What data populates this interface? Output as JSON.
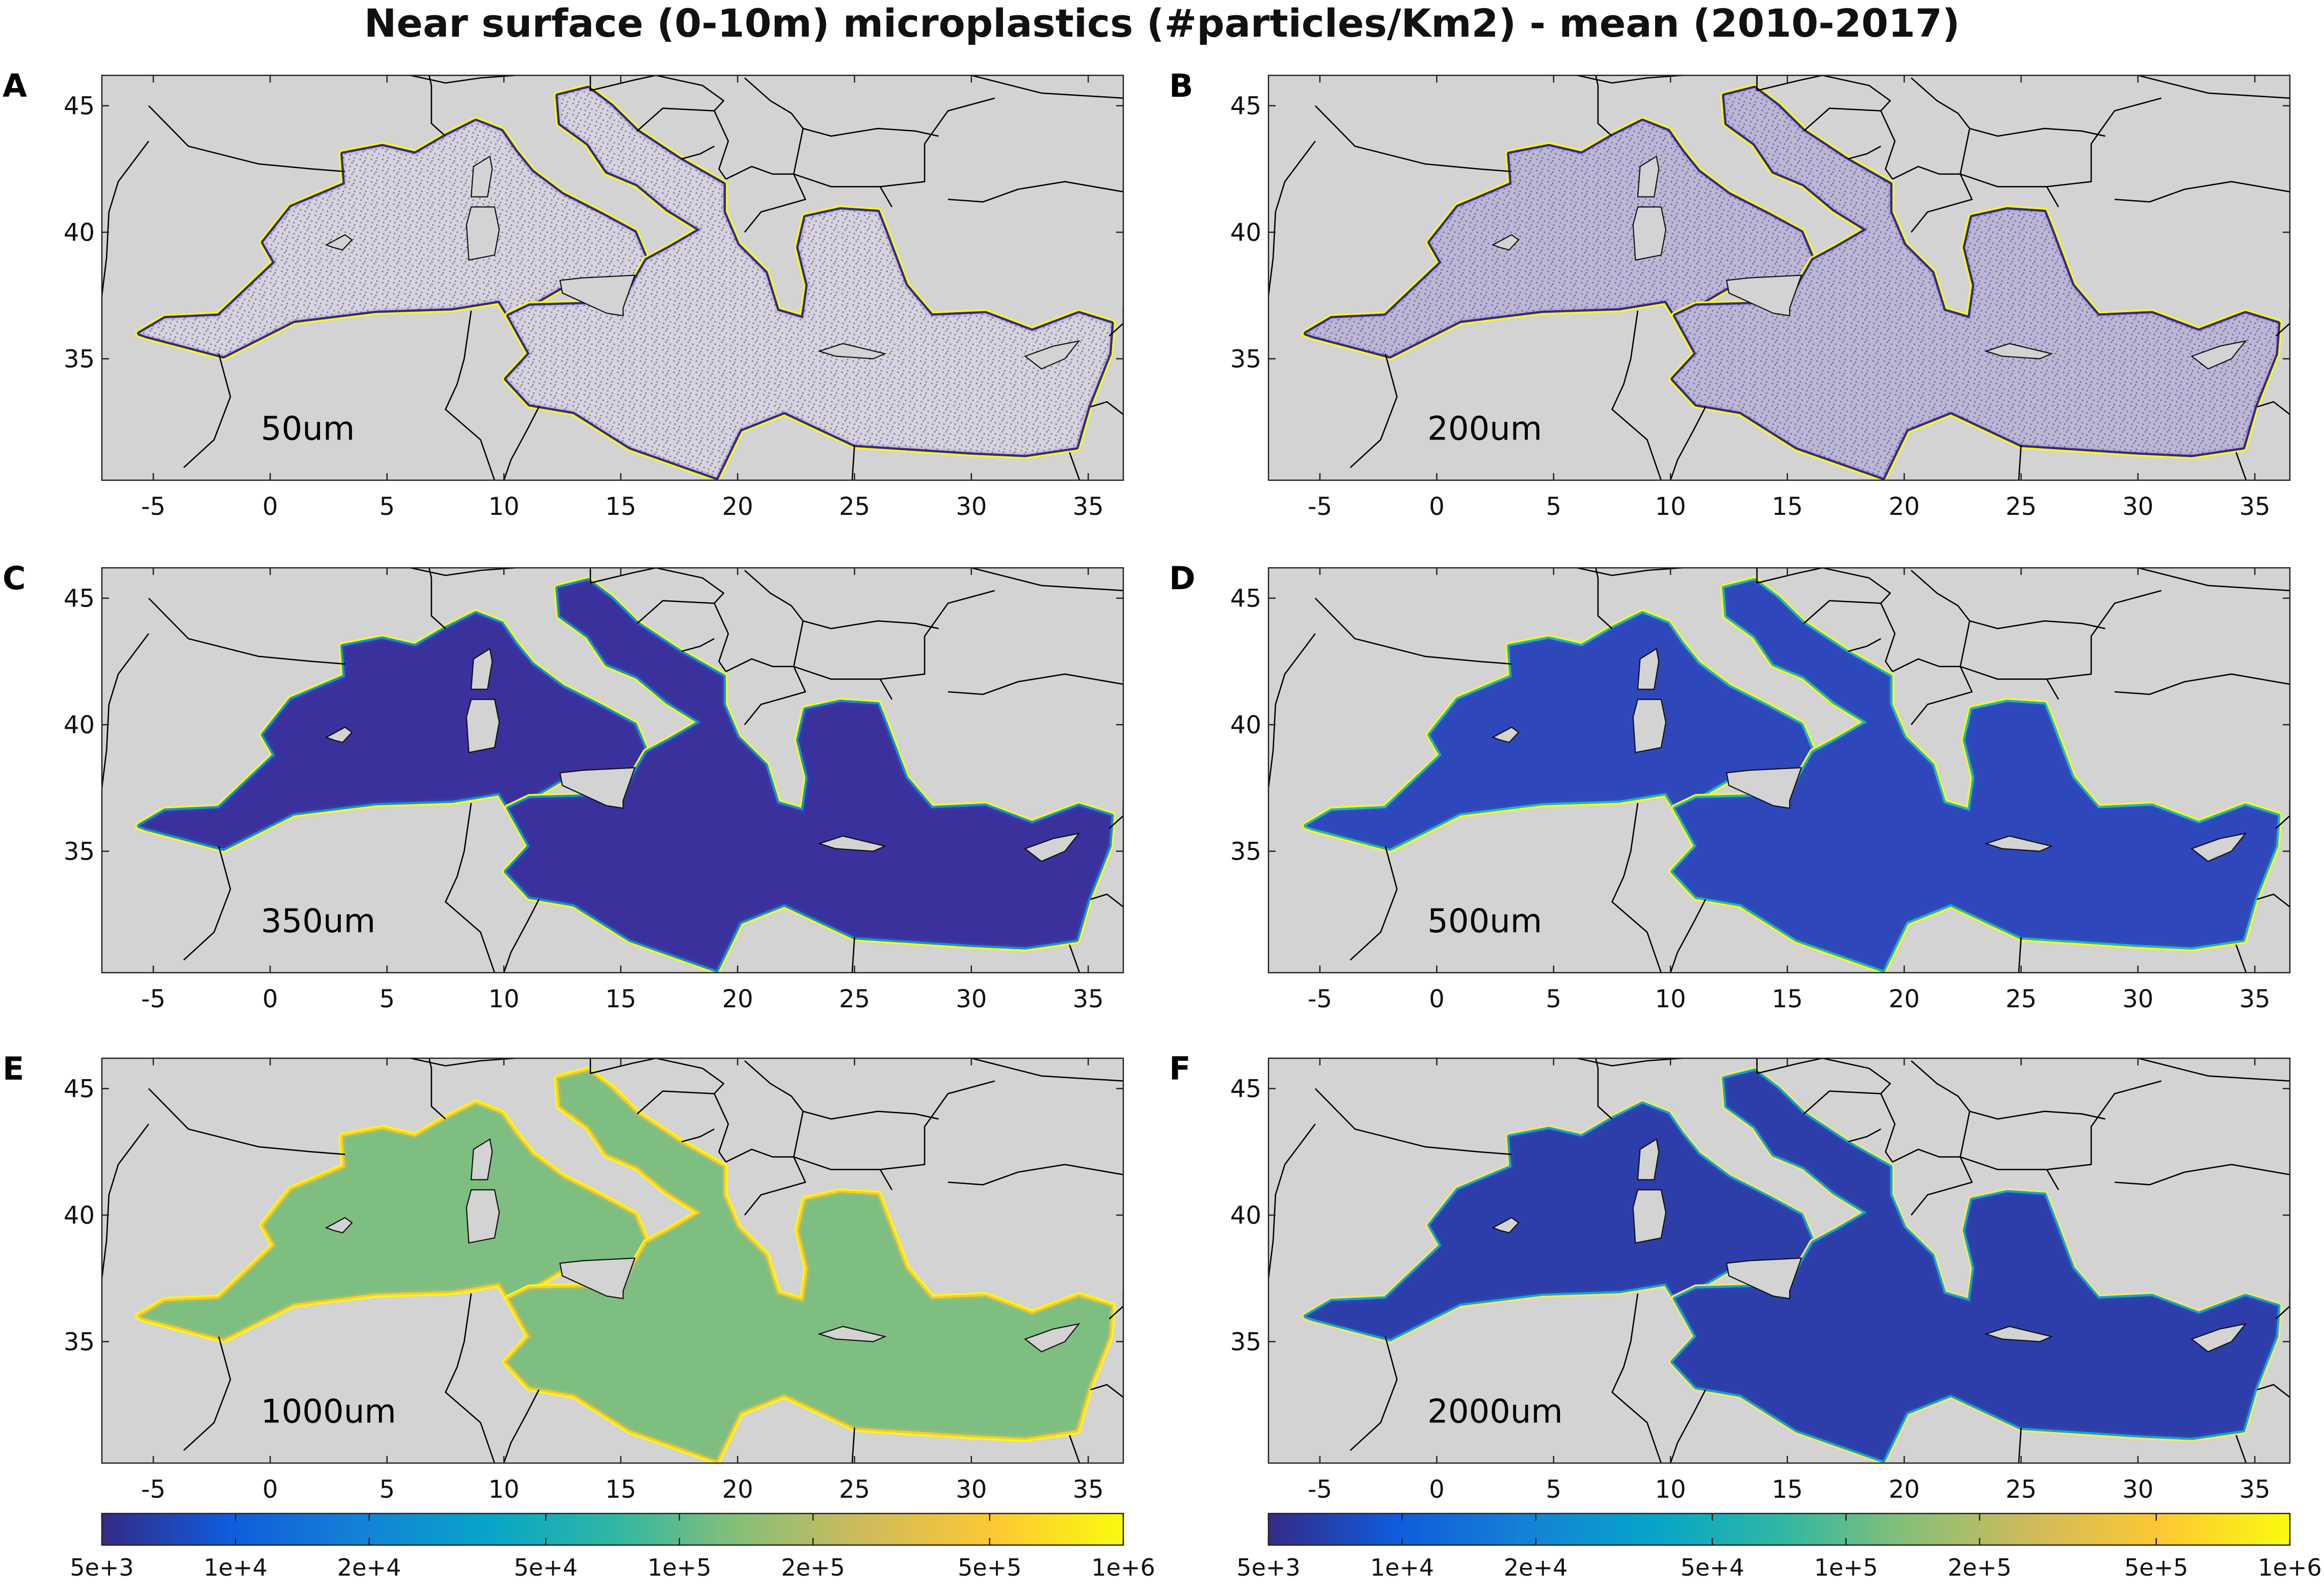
{
  "title": "Near surface (0-10m) microplastics (#particles/Km2) - mean (2010-2017)",
  "map": {
    "lon_ticks": [
      -5,
      0,
      5,
      10,
      15,
      20,
      25,
      30,
      35
    ],
    "lat_ticks": [
      45,
      40,
      35
    ],
    "lon_range": [
      -7.2,
      36.5
    ],
    "lat_range": [
      30.2,
      46.2
    ],
    "land_color": "#d3d3d3",
    "border_color": "#000000"
  },
  "panels": [
    {
      "label": "A",
      "size": "50um"
    },
    {
      "label": "B",
      "size": "200um"
    },
    {
      "label": "C",
      "size": "350um"
    },
    {
      "label": "D",
      "size": "500um"
    },
    {
      "label": "E",
      "size": "1000um"
    },
    {
      "label": "F",
      "size": "2000um"
    }
  ],
  "colorbar": {
    "colormap": "parula",
    "scale": "log",
    "range": [
      5000,
      1000000
    ],
    "tick_values": [
      5000,
      10000,
      20000,
      50000,
      100000,
      200000,
      500000,
      1000000
    ],
    "tick_labels": [
      "5e+3",
      "1e+4",
      "2e+4",
      "5e+4",
      "1e+5",
      "2e+5",
      "5e+5",
      "1e+6"
    ],
    "stops": [
      "#352a87",
      "#0f5cdd",
      "#1481d6",
      "#06a4ca",
      "#2eb7a4",
      "#87bf77",
      "#d1bb59",
      "#fec832",
      "#f9fb0e"
    ]
  }
}
